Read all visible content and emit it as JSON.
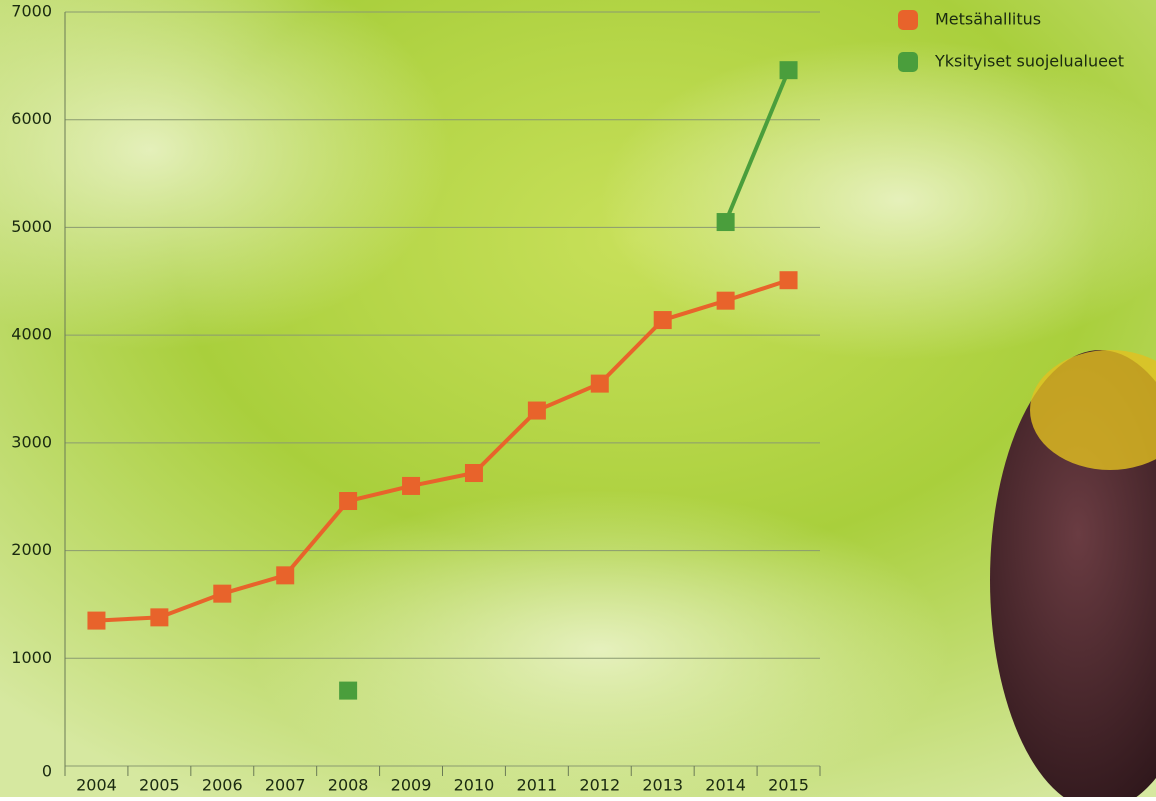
{
  "chart_data": {
    "type": "line",
    "categories": [
      "2004",
      "2005",
      "2006",
      "2007",
      "2008",
      "2009",
      "2010",
      "2011",
      "2012",
      "2013",
      "2014",
      "2015"
    ],
    "series": [
      {
        "name": "Metsähallitus",
        "color": "#e8632b",
        "values": [
          1350,
          1380,
          1600,
          1770,
          2460,
          2600,
          2720,
          3300,
          3550,
          4140,
          4320,
          4510
        ]
      },
      {
        "name": "Yksityiset suojelualueet",
        "color": "#4a9e3c",
        "values": [
          null,
          null,
          null,
          null,
          700,
          null,
          null,
          null,
          null,
          null,
          5050,
          6460
        ]
      }
    ],
    "ylim": [
      0,
      7000
    ],
    "yticks": [
      0,
      1000,
      2000,
      3000,
      4000,
      5000,
      6000,
      7000
    ],
    "grid": true
  }
}
